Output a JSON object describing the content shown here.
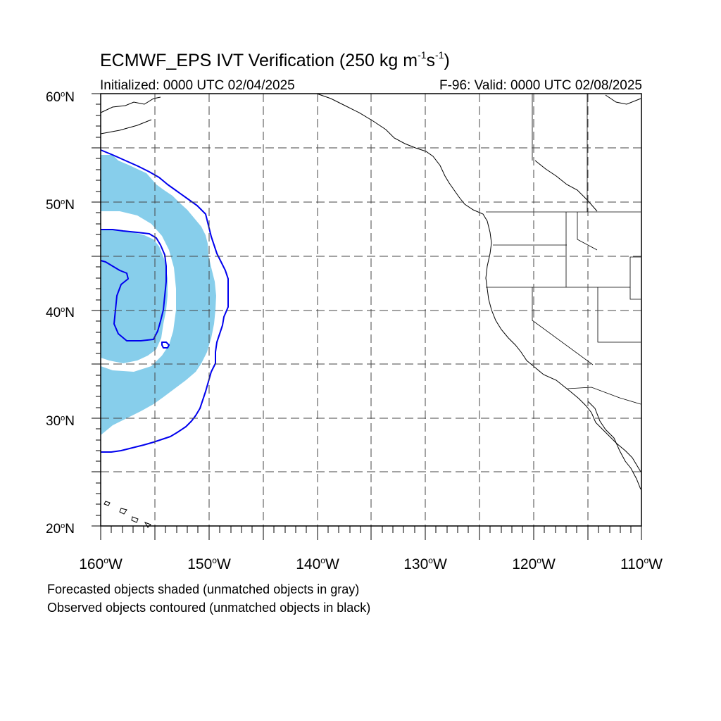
{
  "title": {
    "main": "ECMWF_EPS IVT Verification (250 kg m",
    "sup1": "-1",
    "mid": "s",
    "sup2": "-1",
    "end": ")"
  },
  "initialized": "Initialized: 0000 UTC 02/04/2025",
  "valid": "F-96: Valid: 0000 UTC 02/08/2025",
  "lat_labels": [
    "60",
    "50",
    "40",
    "30",
    "20"
  ],
  "lat_suffix": "N",
  "lon_labels": [
    "160",
    "150",
    "140",
    "130",
    "120",
    "110"
  ],
  "lon_suffix": "W",
  "degree_symbol": "o",
  "map_extent": {
    "lon_min": -160,
    "lon_max": -110,
    "lat_min": 20,
    "lat_max": 60,
    "grid_step_deg": 5
  },
  "footnotes": [
    "Forecasted objects shaded (unmatched objects in gray)",
    "Observed objects contoured (unmatched objects in black)"
  ],
  "colors": {
    "forecast_fill": "#87ceeb",
    "observed_contour": "#0000ee",
    "coastline": "#000000",
    "grid": "#444444"
  }
}
